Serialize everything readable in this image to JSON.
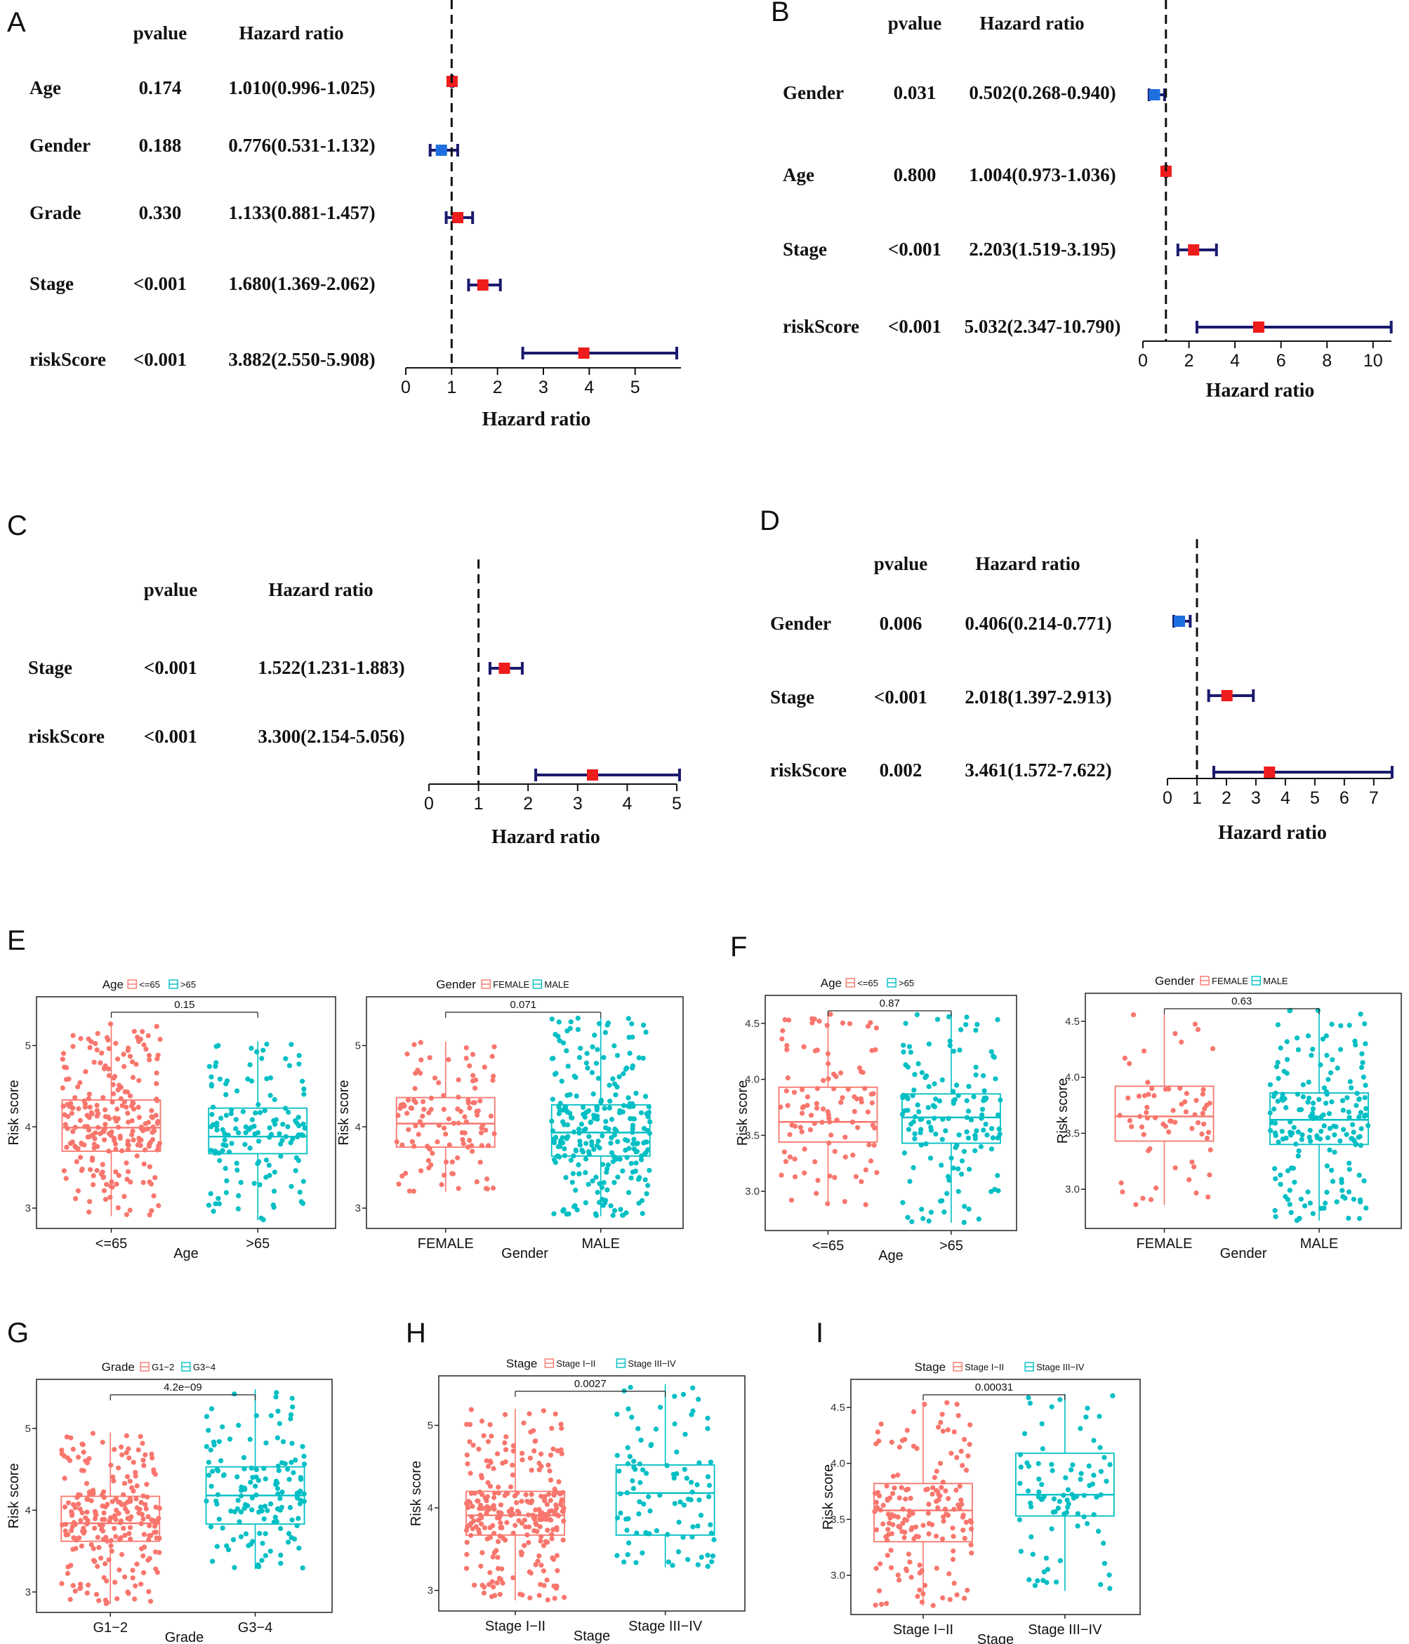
{
  "colors": {
    "red": "#ee1c1c",
    "blue": "#1e6fe0",
    "navy": "#1a1a6e",
    "box_a": "#f8766d",
    "box_b": "#00bfc4"
  },
  "chart_data": [
    {
      "type": "forest",
      "panel": "A",
      "col_headers": [
        "pvalue",
        "Hazard ratio"
      ],
      "xlabel": "Hazard ratio",
      "xlim": [
        0,
        6
      ],
      "ticks": [
        "0",
        "1",
        "2",
        "3",
        "4",
        "5"
      ],
      "rows": [
        {
          "label": "Age",
          "pvalue": "0.174",
          "hr_text": "1.010(0.996-1.025)",
          "hr": 1.01,
          "lo": 0.996,
          "hi": 1.025
        },
        {
          "label": "Gender",
          "pvalue": "0.188",
          "hr_text": "0.776(0.531-1.132)",
          "hr": 0.776,
          "lo": 0.531,
          "hi": 1.132
        },
        {
          "label": "Grade",
          "pvalue": "0.330",
          "hr_text": "1.133(0.881-1.457)",
          "hr": 1.133,
          "lo": 0.881,
          "hi": 1.457
        },
        {
          "label": "Stage",
          "pvalue": "<0.001",
          "hr_text": "1.680(1.369-2.062)",
          "hr": 1.68,
          "lo": 1.369,
          "hi": 2.062
        },
        {
          "label": "riskScore",
          "pvalue": "<0.001",
          "hr_text": "3.882(2.550-5.908)",
          "hr": 3.882,
          "lo": 2.55,
          "hi": 5.908
        }
      ]
    },
    {
      "type": "forest",
      "panel": "B",
      "col_headers": [
        "pvalue",
        "Hazard ratio"
      ],
      "xlabel": "Hazard ratio",
      "xlim": [
        0,
        10.8
      ],
      "ticks": [
        "0",
        "2",
        "4",
        "6",
        "8",
        "10"
      ],
      "rows": [
        {
          "label": "Gender",
          "pvalue": "0.031",
          "hr_text": "0.502(0.268-0.940)",
          "hr": 0.502,
          "lo": 0.268,
          "hi": 0.94
        },
        {
          "label": "Age",
          "pvalue": "0.800",
          "hr_text": "1.004(0.973-1.036)",
          "hr": 1.004,
          "lo": 0.973,
          "hi": 1.036
        },
        {
          "label": "Stage",
          "pvalue": "<0.001",
          "hr_text": "2.203(1.519-3.195)",
          "hr": 2.203,
          "lo": 1.519,
          "hi": 3.195
        },
        {
          "label": "riskScore",
          "pvalue": "<0.001",
          "hr_text": "5.032(2.347-10.790)",
          "hr": 5.032,
          "lo": 2.347,
          "hi": 10.79
        }
      ]
    },
    {
      "type": "forest",
      "panel": "C",
      "col_headers": [
        "pvalue",
        "Hazard ratio"
      ],
      "xlabel": "Hazard ratio",
      "xlim": [
        0,
        5
      ],
      "ticks": [
        "0",
        "1",
        "2",
        "3",
        "4",
        "5"
      ],
      "rows": [
        {
          "label": "Stage",
          "pvalue": "<0.001",
          "hr_text": "1.522(1.231-1.883)",
          "hr": 1.522,
          "lo": 1.231,
          "hi": 1.883
        },
        {
          "label": "riskScore",
          "pvalue": "<0.001",
          "hr_text": "3.300(2.154-5.056)",
          "hr": 3.3,
          "lo": 2.154,
          "hi": 5.056
        }
      ]
    },
    {
      "type": "forest",
      "panel": "D",
      "col_headers": [
        "pvalue",
        "Hazard ratio"
      ],
      "xlabel": "Hazard ratio",
      "xlim": [
        0,
        7.6
      ],
      "ticks": [
        "0",
        "1",
        "2",
        "3",
        "4",
        "5",
        "6",
        "7"
      ],
      "rows": [
        {
          "label": "Gender",
          "pvalue": "0.006",
          "hr_text": "0.406(0.214-0.771)",
          "hr": 0.406,
          "lo": 0.214,
          "hi": 0.771
        },
        {
          "label": "Stage",
          "pvalue": "<0.001",
          "hr_text": "2.018(1.397-2.913)",
          "hr": 2.018,
          "lo": 1.397,
          "hi": 2.913
        },
        {
          "label": "riskScore",
          "pvalue": "0.002",
          "hr_text": "3.461(1.572-7.622)",
          "hr": 3.461,
          "lo": 1.572,
          "hi": 7.622
        }
      ]
    },
    {
      "type": "boxplot",
      "panel": "E",
      "subplot": 1,
      "legend_title": "Age",
      "xlabel": "Age",
      "ylabel": "Risk score",
      "ylim": [
        2.75,
        5.6
      ],
      "yticks": [
        "3",
        "4",
        "5"
      ],
      "pvalue": "0.15",
      "groups": [
        {
          "name": "<=65",
          "q1": 3.7,
          "median": 3.99,
          "q3": 4.33,
          "low": 2.9,
          "high": 5.27,
          "n": 250
        },
        {
          "name": ">65",
          "q1": 3.67,
          "median": 3.88,
          "q3": 4.23,
          "low": 2.85,
          "high": 5.05,
          "n": 140
        }
      ]
    },
    {
      "type": "boxplot",
      "panel": "E",
      "subplot": 2,
      "legend_title": "Gender",
      "xlabel": "Gender",
      "ylabel": "Risk score",
      "ylim": [
        2.75,
        5.6
      ],
      "yticks": [
        "3",
        "4",
        "5"
      ],
      "pvalue": "0.071",
      "groups": [
        {
          "name": "FEMALE",
          "q1": 3.75,
          "median": 4.04,
          "q3": 4.36,
          "low": 3.2,
          "high": 5.05,
          "n": 120
        },
        {
          "name": "MALE",
          "q1": 3.64,
          "median": 3.93,
          "q3": 4.27,
          "low": 2.9,
          "high": 5.35,
          "n": 270
        }
      ]
    },
    {
      "type": "boxplot",
      "panel": "F",
      "subplot": 1,
      "legend_title": "Age",
      "xlabel": "Age",
      "ylabel": "Risk score",
      "ylim": [
        2.65,
        4.75
      ],
      "yticks": [
        "3.0",
        "3.5",
        "4.0",
        "4.5"
      ],
      "pvalue": "0.87",
      "groups": [
        {
          "name": "<=65",
          "q1": 3.44,
          "median": 3.62,
          "q3": 3.93,
          "low": 2.88,
          "high": 4.6,
          "n": 110
        },
        {
          "name": ">65",
          "q1": 3.43,
          "median": 3.66,
          "q3": 3.87,
          "low": 2.72,
          "high": 4.6,
          "n": 150
        }
      ]
    },
    {
      "type": "boxplot",
      "panel": "F",
      "subplot": 2,
      "legend_title": "Gender",
      "xlabel": "Gender",
      "ylabel": "Risk score",
      "ylim": [
        2.65,
        4.75
      ],
      "yticks": [
        "3.0",
        "3.5",
        "4.0",
        "4.5"
      ],
      "pvalue": "0.63",
      "groups": [
        {
          "name": "FEMALE",
          "q1": 3.43,
          "median": 3.65,
          "q3": 3.92,
          "low": 2.86,
          "high": 4.56,
          "n": 70
        },
        {
          "name": "MALE",
          "q1": 3.4,
          "median": 3.62,
          "q3": 3.86,
          "low": 2.72,
          "high": 4.6,
          "n": 190
        }
      ]
    },
    {
      "type": "boxplot",
      "panel": "G",
      "subplot": 1,
      "legend_title": "Grade",
      "xlabel": "Grade",
      "ylabel": "Risk score",
      "ylim": [
        2.75,
        5.6
      ],
      "yticks": [
        "3",
        "4",
        "5"
      ],
      "pvalue": "4.2e−09",
      "groups": [
        {
          "name": "G1−2",
          "q1": 3.62,
          "median": 3.84,
          "q3": 4.17,
          "low": 2.85,
          "high": 4.95,
          "n": 240
        },
        {
          "name": "G3−4",
          "q1": 3.83,
          "median": 4.18,
          "q3": 4.53,
          "low": 3.28,
          "high": 5.48,
          "n": 150
        }
      ]
    },
    {
      "type": "boxplot",
      "panel": "H",
      "subplot": 1,
      "legend_title": "Stage",
      "xlabel": "Stage",
      "ylabel": "Risk score",
      "ylim": [
        2.75,
        5.6
      ],
      "yticks": [
        "3",
        "4",
        "5"
      ],
      "pvalue": "0.0027",
      "groups": [
        {
          "name": "Stage I−II",
          "q1": 3.67,
          "median": 3.91,
          "q3": 4.2,
          "low": 2.88,
          "high": 5.2,
          "n": 280
        },
        {
          "name": "Stage III−IV",
          "q1": 3.67,
          "median": 4.18,
          "q3": 4.52,
          "low": 3.28,
          "high": 5.5,
          "n": 100
        }
      ]
    },
    {
      "type": "boxplot",
      "panel": "I",
      "subplot": 1,
      "legend_title": "Stage",
      "xlabel": "Stage",
      "ylabel": "Risk score",
      "ylim": [
        2.65,
        4.75
      ],
      "yticks": [
        "3.0",
        "3.5",
        "4.0",
        "4.5"
      ],
      "pvalue": "0.00031",
      "groups": [
        {
          "name": "Stage I−II",
          "q1": 3.3,
          "median": 3.58,
          "q3": 3.82,
          "low": 2.73,
          "high": 4.55,
          "n": 170
        },
        {
          "name": "Stage III−IV",
          "q1": 3.53,
          "median": 3.72,
          "q3": 4.09,
          "low": 2.86,
          "high": 4.62,
          "n": 90
        }
      ]
    }
  ]
}
